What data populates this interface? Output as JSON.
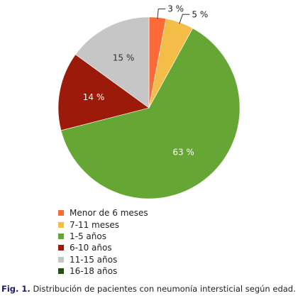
{
  "chart_data": {
    "type": "pie",
    "title": "",
    "start_angle_deg": 0,
    "direction": "clockwise",
    "categories": [
      "Menor de 6 meses",
      "7-11 meses",
      "1-5 años",
      "6-10 años",
      "11-15 años",
      "16-18 años"
    ],
    "values": [
      3,
      5,
      63,
      14,
      15,
      0
    ],
    "value_labels": [
      "3 %",
      "5 %",
      "63 %",
      "14 %",
      "15 %",
      ""
    ],
    "colors": [
      "#fd6a35",
      "#f4bd48",
      "#66a635",
      "#9c1a0a",
      "#c6c6c6",
      "#254d0d"
    ],
    "label_colors": [
      "#222222",
      "#222222",
      "#ffffff",
      "#ffffff",
      "#333333",
      "#222222"
    ],
    "legend_position": "bottom-left"
  },
  "caption": {
    "label": "Fig. 1.",
    "text": "Distribución de pacientes con neumonía intersticial según edad."
  }
}
